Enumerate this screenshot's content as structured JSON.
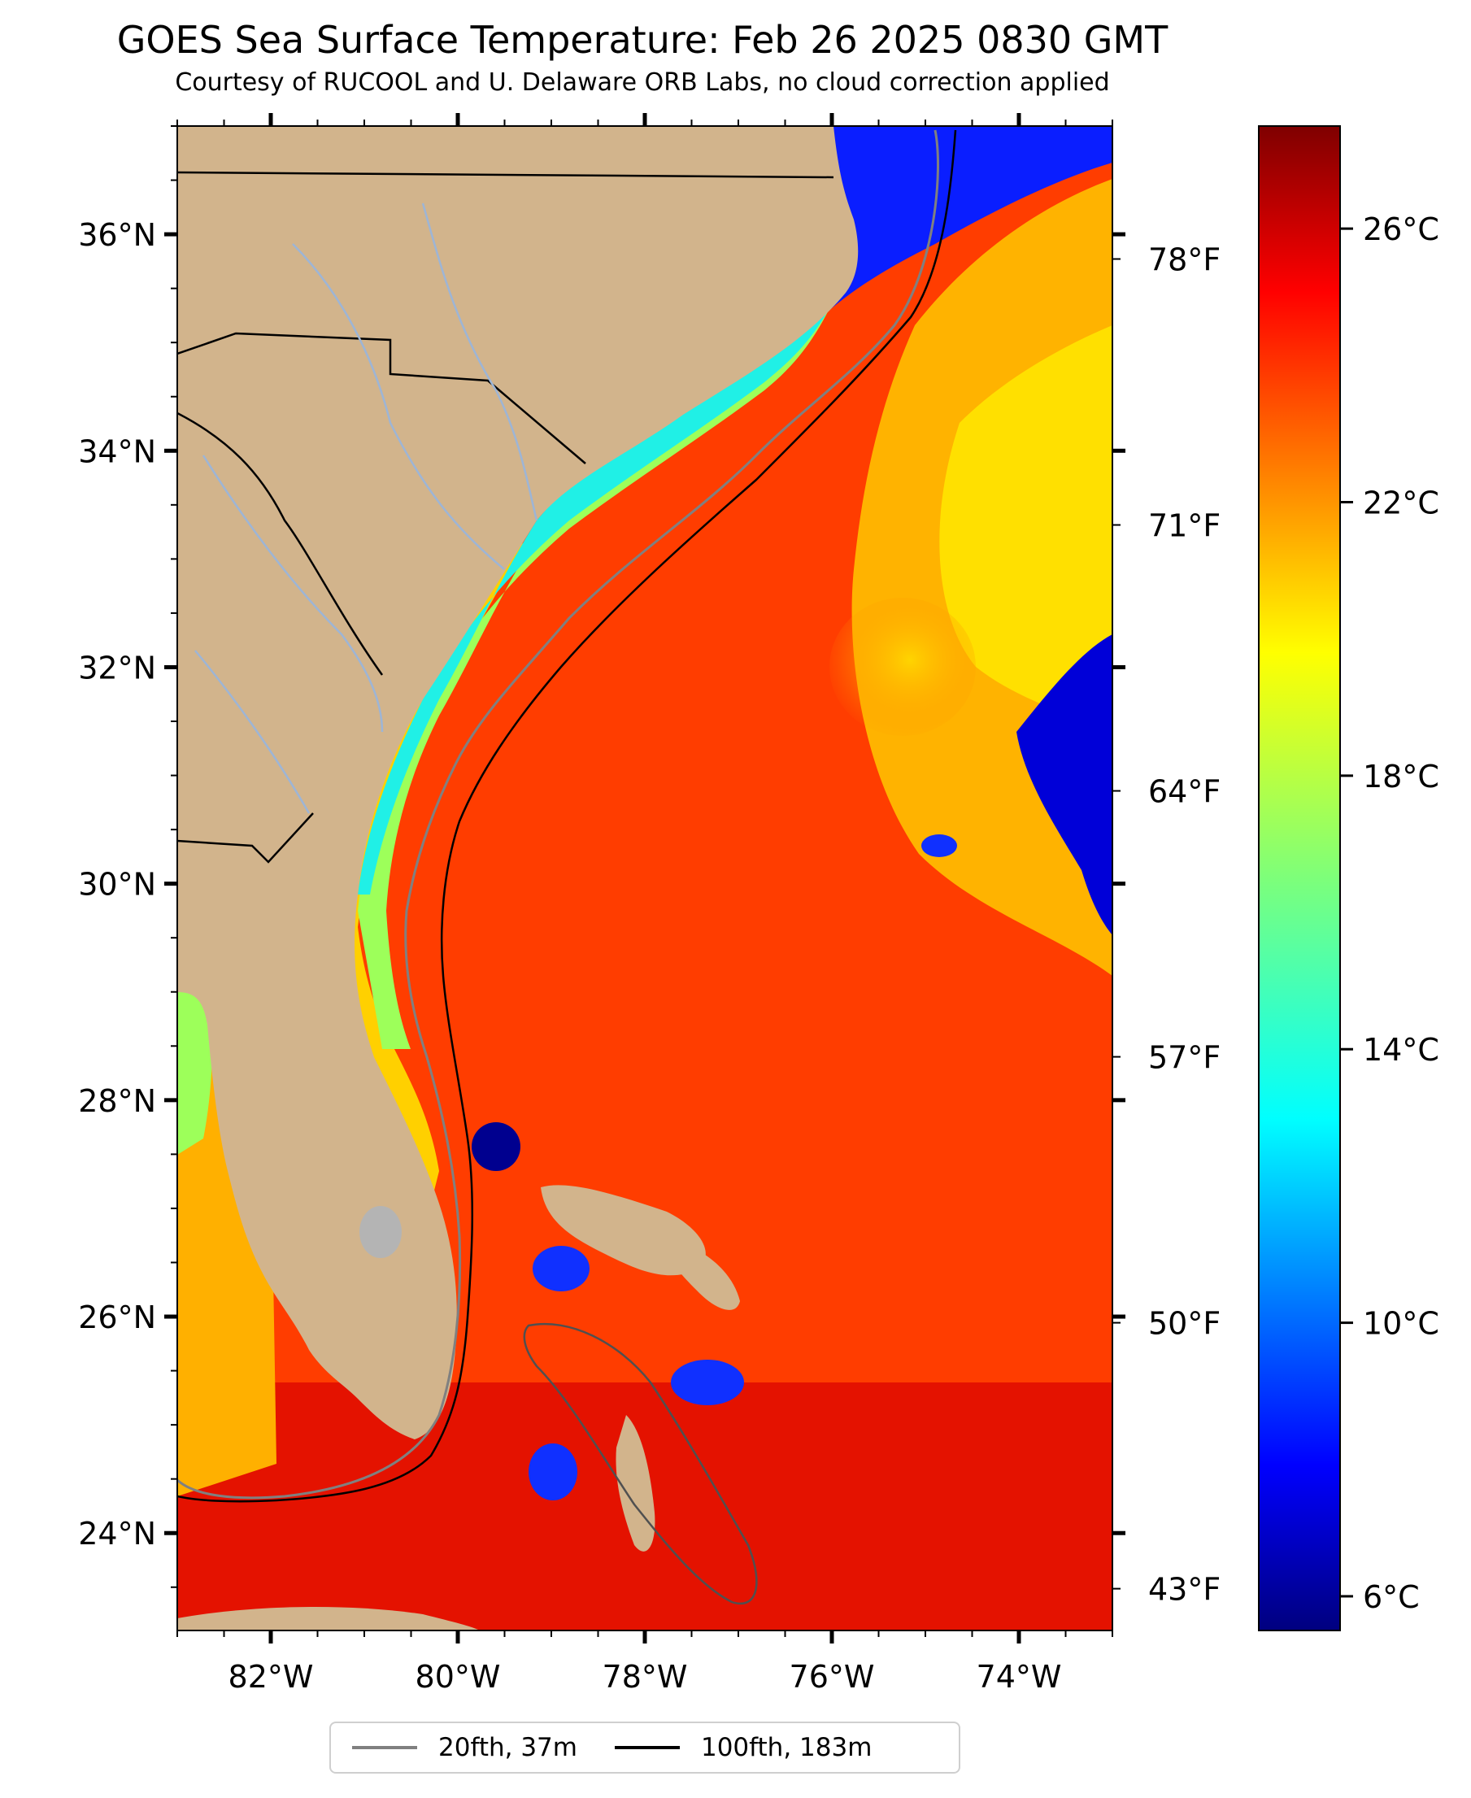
{
  "header": {
    "title": "GOES Sea Surface Temperature: Feb 26 2025 0830 GMT",
    "subtitle": "Courtesy of RUCOOL and U. Delaware ORB Labs, no cloud correction applied"
  },
  "map": {
    "lon_range": [
      -83,
      -73
    ],
    "lat_range": [
      23.1,
      37
    ],
    "lon_ticks": [
      {
        "value": -82,
        "label": "82°W"
      },
      {
        "value": -80,
        "label": "80°W"
      },
      {
        "value": -78,
        "label": "78°W"
      },
      {
        "value": -76,
        "label": "76°W"
      },
      {
        "value": -74,
        "label": "74°W"
      }
    ],
    "lat_ticks": [
      {
        "value": 24,
        "label": "24°N"
      },
      {
        "value": 26,
        "label": "26°N"
      },
      {
        "value": 28,
        "label": "28°N"
      },
      {
        "value": 30,
        "label": "30°N"
      },
      {
        "value": 32,
        "label": "32°N"
      },
      {
        "value": 34,
        "label": "34°N"
      },
      {
        "value": 36,
        "label": "36°N"
      }
    ],
    "fahrenheit_ticks": [
      {
        "value": 78,
        "label": "78°F"
      },
      {
        "value": 71,
        "label": "71°F"
      },
      {
        "value": 64,
        "label": "64°F"
      },
      {
        "value": 57,
        "label": "57°F"
      },
      {
        "value": 50,
        "label": "50°F"
      },
      {
        "value": 43,
        "label": "43°F"
      }
    ],
    "colors": {
      "land": "#d2b48c",
      "state_border": "#000000",
      "river": "#9db5d6",
      "lake": "#b4b4b4"
    }
  },
  "colorbar": {
    "range_c": [
      5.5,
      27.5
    ],
    "ticks": [
      {
        "value": 26,
        "label": "26°C"
      },
      {
        "value": 22,
        "label": "22°C"
      },
      {
        "value": 18,
        "label": "18°C"
      },
      {
        "value": 14,
        "label": "14°C"
      },
      {
        "value": 10,
        "label": "10°C"
      },
      {
        "value": 6,
        "label": "6°C"
      }
    ],
    "colormap": "jet"
  },
  "legend": {
    "items": [
      {
        "label": "20fth, 37m",
        "color": "#808080"
      },
      {
        "label": "100fth, 183m",
        "color": "#000000"
      }
    ]
  }
}
